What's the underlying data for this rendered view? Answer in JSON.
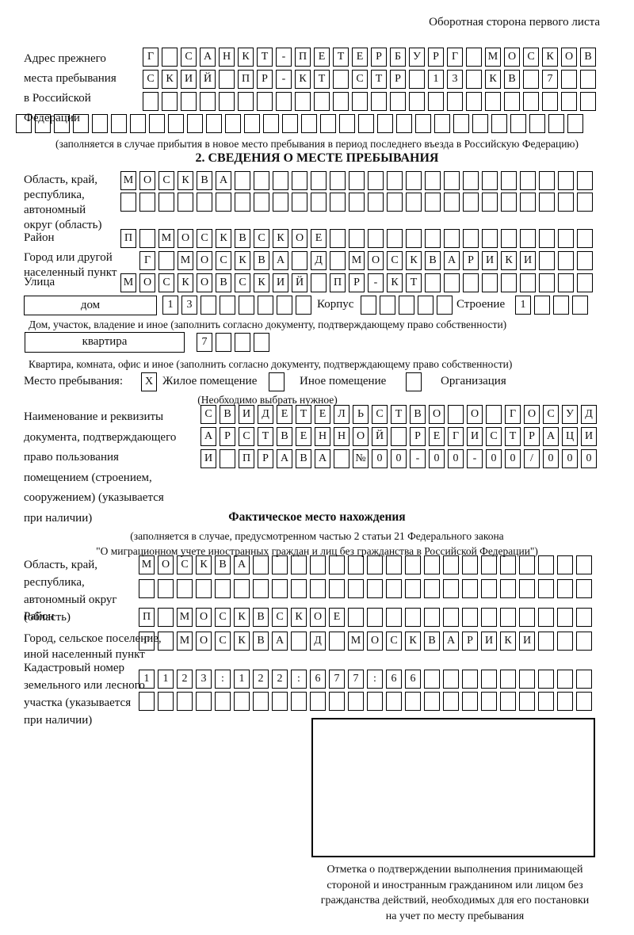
{
  "page": {
    "header_note": "Оборотная сторона первого листа"
  },
  "prev_address": {
    "label_lines": [
      "Адрес прежнего",
      "места пребывания",
      "в Российской",
      "Федерации"
    ],
    "rows": [
      {
        "text": "Г САНКТ-ПЕТЕРБУРГ МОСКОВ",
        "len": 24
      },
      {
        "text": "СКИЙ ПР-КТ СТР 13 КВ 7",
        "len": 24
      },
      {
        "text": "",
        "len": 24
      },
      {
        "text": "",
        "len": 30
      }
    ],
    "caption": "(заполняется в случае прибытия в новое место пребывания в период последнего въезда в Российскую Федерацию)"
  },
  "section2": {
    "title": "2. СВЕДЕНИЯ О МЕСТЕ ПРЕБЫВАНИЯ",
    "oblast": {
      "label_lines": [
        "Область, край,",
        "республика,",
        "автономный",
        "округ (область)"
      ],
      "rows": [
        {
          "text": "МОСКВА",
          "len": 25
        },
        {
          "text": "",
          "len": 25
        }
      ]
    },
    "raion": {
      "label": "Район",
      "row": {
        "text": "П МОСКВСКОЕ",
        "len": 25
      }
    },
    "gorod": {
      "label_lines": [
        "Город или другой",
        "населенный пункт"
      ],
      "row": {
        "text": "Г МОСКВА Д МОСКВАРИКИ",
        "len": 24
      }
    },
    "ulitsa": {
      "label": "Улица",
      "row": {
        "text": "МОСКОВСКИЙ ПР-КТ",
        "len": 25
      }
    },
    "dom": {
      "box_label": "дом",
      "cells": {
        "text": "13",
        "len": 8
      },
      "korpus_label": "Корпус",
      "korpus_cells": {
        "text": "",
        "len": 5
      },
      "stroenie_label": "Строение",
      "stroenie_cells": {
        "text": "1",
        "len": 4
      },
      "caption": "Дом, участок, владение и иное (заполнить согласно документу, подтверждающему право собственности)"
    },
    "kvartira": {
      "box_label": "квартира",
      "cells": {
        "text": "7",
        "len": 4
      },
      "caption": "Квартира, комната, офис и иное (заполнить согласно документу, подтверждающему право собственности)"
    },
    "mesto": {
      "label": "Место пребывания:",
      "options": [
        {
          "label": "Жилое помещение",
          "mark": "X"
        },
        {
          "label": "Иное помещение",
          "mark": ""
        },
        {
          "label": "Организация",
          "mark": ""
        }
      ],
      "note": "(Необходимо выбрать нужное)"
    },
    "document": {
      "label_lines": [
        "Наименование и реквизиты",
        "документа, подтверждающего",
        "право пользования",
        "помещением (строением,",
        "сооружением) (указывается",
        "при наличии)"
      ],
      "rows": [
        {
          "text": "СВИДЕТЕЛЬСТВО О ГОСУД",
          "len": 21
        },
        {
          "text": "АРСТВЕННОЙ РЕГИСТРАЦИ",
          "len": 21
        },
        {
          "text": "И ПРАВА №00-00-00/000",
          "len": 21
        }
      ]
    }
  },
  "fact": {
    "title": "Фактическое место нахождения",
    "caption_lines": [
      "(заполняется в случае, предусмотренном частью 2 статьи 21 Федерального закона",
      "\"О миграционном учете иностранных граждан и лиц без гражданства в Российской Федерации\")"
    ],
    "oblast": {
      "label_lines": [
        "Область, край,",
        "республика,",
        "автономный округ",
        "(область)"
      ],
      "rows": [
        {
          "text": "МОСКВА",
          "len": 24
        },
        {
          "text": "",
          "len": 24
        }
      ]
    },
    "raion": {
      "label": "Район",
      "row": {
        "text": "П МОСКВСКОЕ",
        "len": 24
      }
    },
    "gorod": {
      "label_lines": [
        "Город, сельское поселение,",
        "иной населенный пункт"
      ],
      "row": {
        "text": "Г МОСКВА Д МОСКВАРИКИ",
        "len": 24
      }
    },
    "kadastr": {
      "label_lines": [
        "Кадастровый номер",
        "земельного или лесного",
        "участка (указывается",
        "при наличии)"
      ],
      "rows": [
        {
          "text": "1123:122:677:66",
          "len": 24
        },
        {
          "text": "",
          "len": 24
        }
      ]
    },
    "stamp_caption_lines": [
      "Отметка о подтверждении выполнения принимающей",
      "стороной и иностранным гражданином или лицом без",
      "гражданства действий, необходимых для его постановки",
      "на учет по месту пребывания"
    ]
  }
}
